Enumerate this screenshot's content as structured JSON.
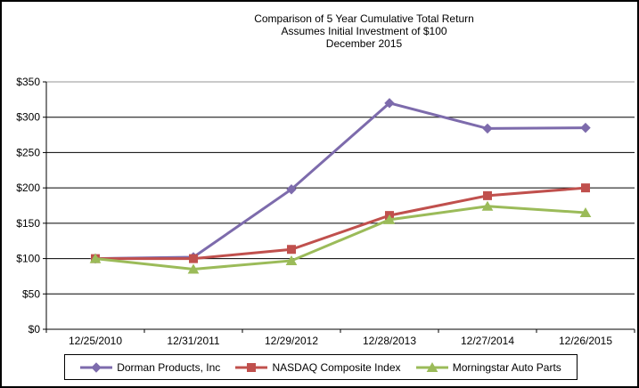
{
  "chart_data": {
    "type": "line",
    "title_lines": [
      "Comparison of 5 Year Cumulative Total Return",
      "Assumes Initial Investment of $100",
      "December 2015"
    ],
    "categories": [
      "12/25/2010",
      "12/31/2011",
      "12/29/2012",
      "12/28/2013",
      "12/27/2014",
      "12/26/2015"
    ],
    "series": [
      {
        "name": "Dorman Products, Inc",
        "color": "#7D6BAC",
        "marker": "diamond",
        "values": [
          100,
          102,
          198,
          320,
          284,
          285
        ]
      },
      {
        "name": "NASDAQ Composite Index",
        "color": "#C0504D",
        "marker": "square",
        "values": [
          100,
          100,
          113,
          161,
          189,
          200
        ]
      },
      {
        "name": "Morningstar Auto Parts",
        "color": "#9BBB59",
        "marker": "triangle",
        "values": [
          100,
          85,
          97,
          155,
          174,
          165
        ]
      }
    ],
    "y_axis": {
      "min": 0,
      "max": 350,
      "step": 50,
      "tick_labels": [
        "$0",
        "$50",
        "$100",
        "$150",
        "$200",
        "$250",
        "$300",
        "$350"
      ]
    },
    "grid": true,
    "legend_position": "bottom",
    "colors": {
      "axis": "#000000",
      "gridline": "#000000",
      "plot_top_border": "#969696",
      "text": "#000000",
      "background": "#FFFFFF",
      "frame_border": "#000000"
    }
  }
}
